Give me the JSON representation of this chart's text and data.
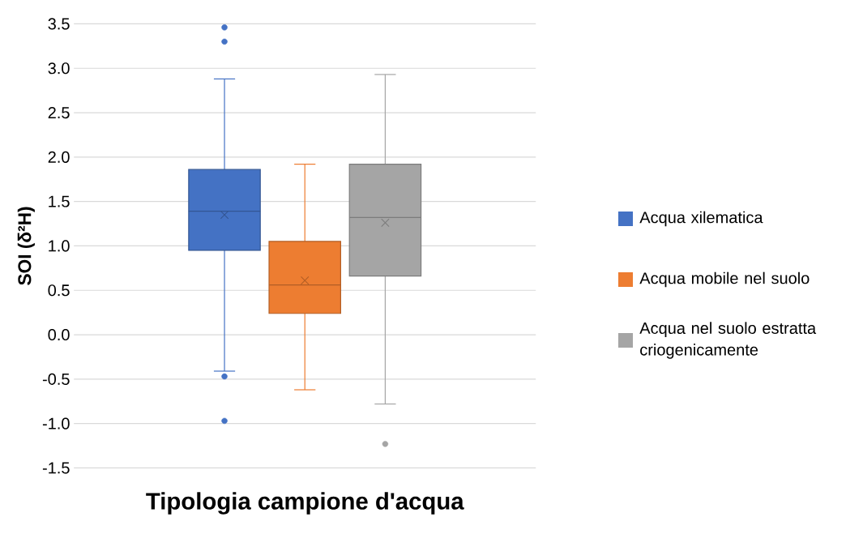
{
  "chart_data": {
    "type": "box",
    "ylabel": "SOI (δ²H)",
    "xlabel": "Tipologia campione d'acqua",
    "categories": [
      null
    ],
    "ylim": [
      -1.5,
      3.5
    ],
    "yticks": [
      {
        "value": -1.5,
        "label": "-1.5"
      },
      {
        "value": -1,
        "label": "-1.0"
      },
      {
        "value": -0.5,
        "label": "-0.5"
      },
      {
        "value": 0,
        "label": "0.0"
      },
      {
        "value": 0.5,
        "label": "0.5"
      },
      {
        "value": 1,
        "label": "1.0"
      },
      {
        "value": 1.5,
        "label": "1.5"
      },
      {
        "value": 2,
        "label": "2.0"
      },
      {
        "value": 2.5,
        "label": "2.5"
      },
      {
        "value": 3,
        "label": "3.0"
      },
      {
        "value": 3.5,
        "label": "3.5"
      }
    ],
    "grid": "y",
    "legend": "right",
    "tick_labels": "y",
    "series": [
      {
        "name": "Acqua xilematica",
        "color": "#4472c4",
        "boxes": [
          {
            "low": -0.41,
            "q1": 0.95,
            "median": 1.39,
            "q3": 1.86,
            "high": 2.88,
            "mean": 1.35,
            "outliers": [
              3.46,
              3.3,
              -0.47,
              -0.97
            ]
          }
        ]
      },
      {
        "name": "Acqua mobile nel suolo",
        "color": "#ed7d31",
        "boxes": [
          {
            "low": -0.62,
            "q1": 0.24,
            "median": 0.56,
            "q3": 1.05,
            "high": 1.92,
            "mean": 0.61
          }
        ]
      },
      {
        "name": "Acqua nel suolo estratta criogenicamente",
        "color": "#a5a5a5",
        "boxes": [
          {
            "low": -0.78,
            "q1": 0.66,
            "median": 1.32,
            "q3": 1.92,
            "high": 2.93,
            "mean": 1.26,
            "outliers": [
              -1.23
            ]
          }
        ]
      }
    ]
  }
}
